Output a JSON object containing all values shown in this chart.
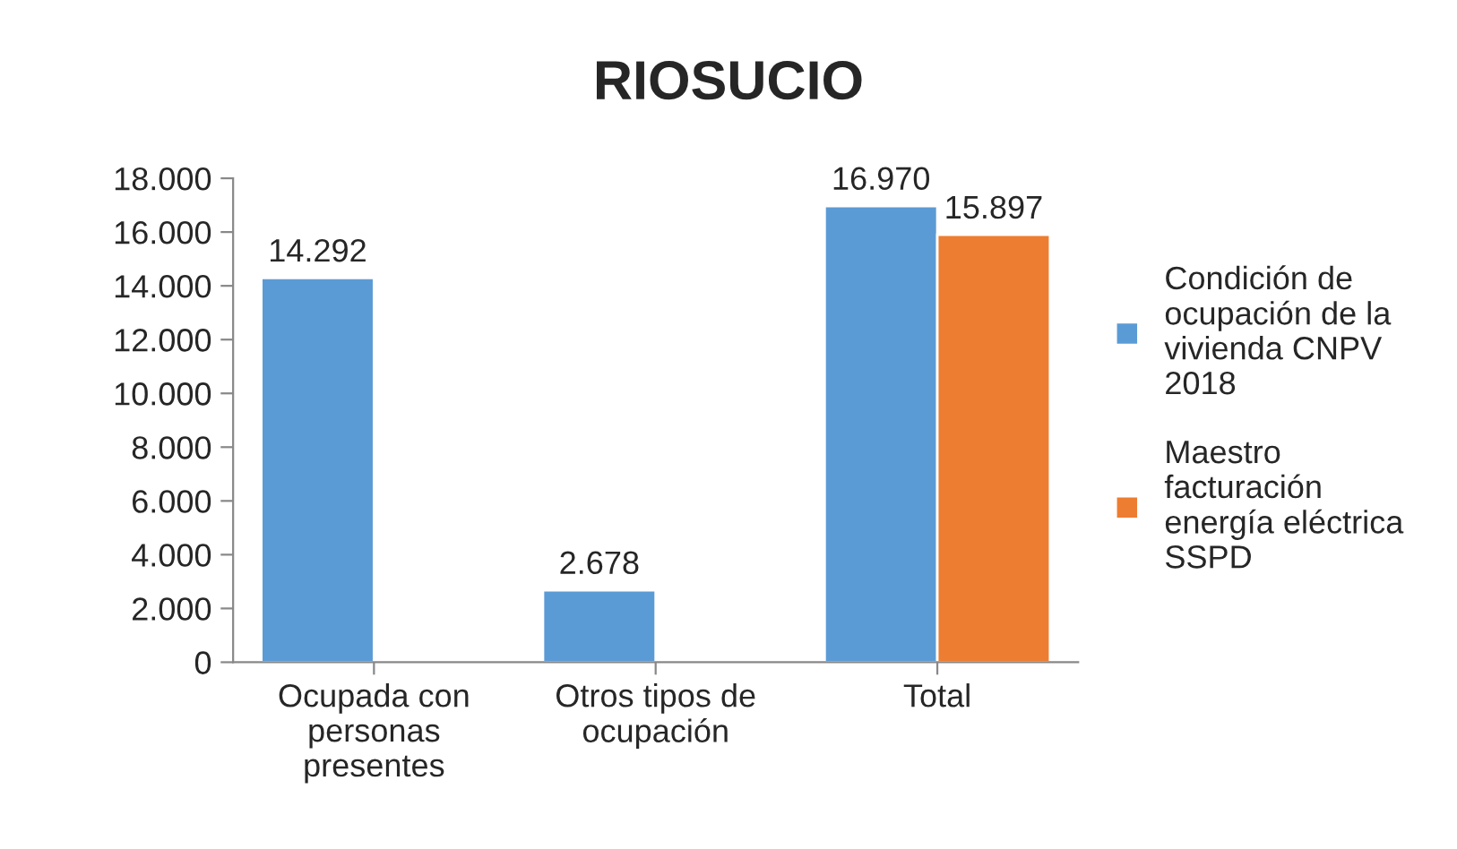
{
  "chart_data": {
    "type": "bar",
    "title": "RIOSUCIO",
    "categories": [
      "Ocupada con\npersonas\npresentes",
      "Otros tipos de\nocupación",
      "Total"
    ],
    "series": [
      {
        "name": "Condición de\nocupación de la\nvivienda CNPV\n2018",
        "color": "#5b9bd5",
        "values": [
          14292,
          2678,
          16970
        ],
        "value_labels": [
          "14.292",
          "2.678",
          "16.970"
        ]
      },
      {
        "name": "Maestro\nfacturación\nenergía eléctrica\nSSPD",
        "color": "#ed7d31",
        "values": [
          null,
          null,
          15897
        ],
        "value_labels": [
          null,
          null,
          "15.897"
        ]
      }
    ],
    "ylim": [
      0,
      18000
    ],
    "yticks": [
      0,
      {
        "value": 2000,
        "label": "2.000"
      },
      {
        "value": 4000,
        "label": "4.000"
      },
      {
        "value": 6000,
        "label": "6.000"
      },
      {
        "value": 8000,
        "label": "8.000"
      },
      {
        "value": 10000,
        "label": "10.000"
      },
      {
        "value": 12000,
        "label": "12.000"
      },
      {
        "value": 14000,
        "label": "14.000"
      },
      {
        "value": 16000,
        "label": "16.000"
      },
      {
        "value": 18000,
        "label": "18.000"
      }
    ],
    "grid": false,
    "legend": "right"
  }
}
